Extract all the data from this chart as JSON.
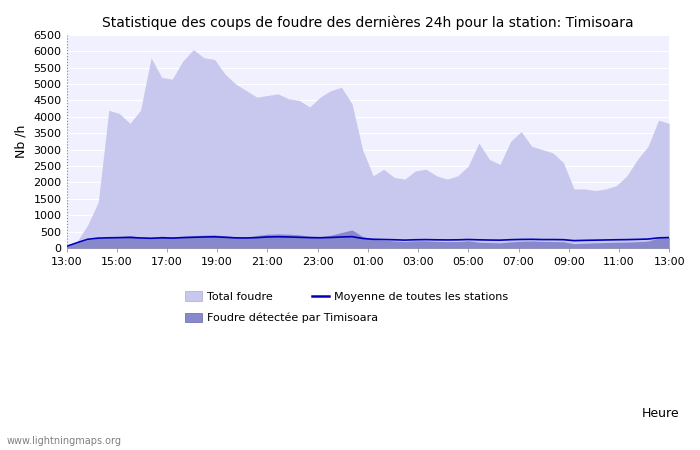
{
  "title": "Statistique des coups de foudre des dernières 24h pour la station: Timisoara",
  "ylabel": "Nb /h",
  "xlabel": "Heure",
  "ylim": [
    0,
    6500
  ],
  "yticks": [
    0,
    500,
    1000,
    1500,
    2000,
    2500,
    3000,
    3500,
    4000,
    4500,
    5000,
    5500,
    6000,
    6500
  ],
  "xtick_labels": [
    "13:00",
    "15:00",
    "17:00",
    "19:00",
    "21:00",
    "23:00",
    "01:00",
    "03:00",
    "05:00",
    "07:00",
    "09:00",
    "11:00",
    "13:00"
  ],
  "watermark": "www.lightningmaps.org",
  "bg_color": "#ffffff",
  "plot_bg_color": "#f0f0ff",
  "grid_color": "#ffffff",
  "total_foudre_color": "#c8c8ee",
  "timisoara_color": "#8888cc",
  "moyenne_color": "#0000bb",
  "total_foudre_values": [
    50,
    200,
    700,
    1400,
    4200,
    4100,
    3800,
    4200,
    5800,
    5200,
    5150,
    5700,
    6050,
    5800,
    5750,
    5300,
    5000,
    4800,
    4600,
    4650,
    4700,
    4550,
    4500,
    4300,
    4600,
    4800,
    4900,
    4400,
    3000,
    2200,
    2400,
    2150,
    2100,
    2350,
    2400,
    2200,
    2100,
    2200,
    2500,
    3200,
    2700,
    2550,
    3250,
    3550,
    3100,
    3000,
    2900,
    2600,
    1800,
    1800,
    1750,
    1800,
    1900,
    2200,
    2700,
    3100,
    3900,
    3800
  ],
  "timisoara_values": [
    50,
    150,
    250,
    300,
    320,
    350,
    380,
    330,
    320,
    360,
    340,
    360,
    380,
    390,
    400,
    370,
    340,
    330,
    380,
    420,
    430,
    420,
    400,
    360,
    350,
    390,
    470,
    550,
    350,
    260,
    240,
    215,
    200,
    220,
    220,
    200,
    195,
    195,
    220,
    175,
    165,
    155,
    185,
    205,
    215,
    200,
    195,
    190,
    130,
    145,
    155,
    165,
    175,
    180,
    190,
    210,
    305,
    320
  ],
  "moyenne_values": [
    50,
    160,
    265,
    300,
    310,
    315,
    320,
    305,
    295,
    310,
    300,
    315,
    325,
    335,
    340,
    325,
    308,
    305,
    315,
    335,
    342,
    335,
    325,
    315,
    310,
    320,
    335,
    345,
    290,
    265,
    258,
    250,
    240,
    250,
    255,
    248,
    245,
    248,
    258,
    248,
    242,
    238,
    252,
    260,
    263,
    256,
    256,
    252,
    224,
    232,
    238,
    244,
    250,
    254,
    262,
    272,
    308,
    318
  ]
}
